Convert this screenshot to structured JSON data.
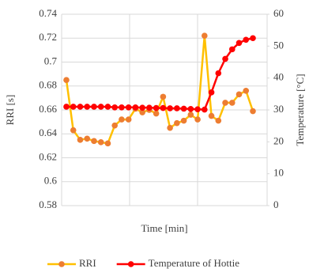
{
  "chart_data": {
    "type": "line",
    "y_label": "RRI [s]",
    "y2_label": "Temperature [°C]",
    "x_label": "Time [min]",
    "categories": [
      null,
      null,
      null,
      null,
      null,
      null,
      null,
      null,
      null,
      null,
      null,
      null,
      null,
      null,
      null,
      null,
      null,
      null,
      null,
      null,
      null,
      null,
      null,
      null,
      null,
      null,
      null,
      null
    ],
    "series": [
      {
        "name": "RRI",
        "color": "#ffc000",
        "marker_color": "#ed7d31",
        "values": [
          0.685,
          0.643,
          0.635,
          0.636,
          0.634,
          0.633,
          0.632,
          0.647,
          0.652,
          0.652,
          0.661,
          0.658,
          0.66,
          0.657,
          0.671,
          0.645,
          0.649,
          0.651,
          0.656,
          0.652,
          0.722,
          0.655,
          0.651,
          0.666,
          0.666,
          0.673,
          0.676,
          0.659
        ]
      },
      {
        "name": "Temperature of Hottie",
        "color": "#ff0000",
        "marker_color": "#ff0000",
        "axis": "y2",
        "values": [
          31,
          31,
          31,
          31,
          31,
          31,
          31,
          30.8,
          30.8,
          30.8,
          30.8,
          30.7,
          30.7,
          30.6,
          30.6,
          30.5,
          30.5,
          30.4,
          30.3,
          30.2,
          30.1,
          35.5,
          41.5,
          46,
          49,
          51,
          52,
          52.5
        ]
      }
    ],
    "ylim": [
      0.58,
      0.74
    ],
    "yticks": [
      0.58,
      {
        "value": 0.6,
        "label": "0.6"
      },
      0.62,
      0.64,
      0.66,
      0.68,
      {
        "value": 0.7,
        "label": "0.7"
      },
      0.72,
      0.74
    ],
    "y2lim": [
      0,
      60
    ],
    "y2ticks": [
      0,
      10,
      20,
      30,
      40,
      50,
      60
    ],
    "grid": true
  }
}
